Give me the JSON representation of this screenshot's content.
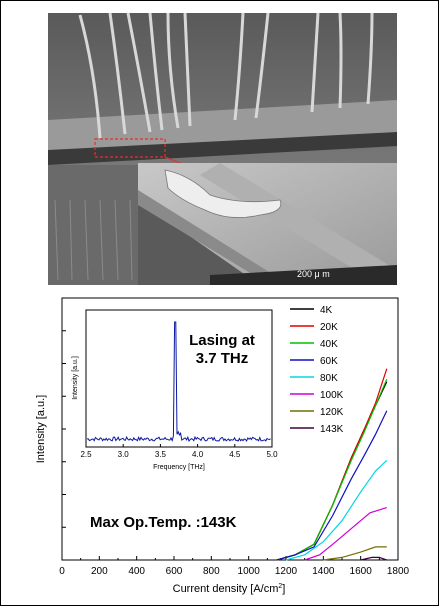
{
  "sem": {
    "scale_label": "200 μ m",
    "colors": {
      "highlight": "#e03030"
    }
  },
  "chart_data": [
    {
      "type": "line",
      "title": "",
      "xlabel": "Current density [A/cm",
      "xlabel_sup": "2",
      "xlabel_end": "]",
      "ylabel": "Intensity [a.u.]",
      "xlim": [
        0,
        1800
      ],
      "x_ticks": [
        "0",
        "200",
        "400",
        "600",
        "800",
        "1000",
        "1200",
        "1400",
        "1600",
        "1800"
      ],
      "legend_position": "top-right",
      "annotation": "Max Op.Temp. :143K",
      "series": [
        {
          "name": "4K",
          "color": "#000000",
          "points": [
            [
              1150,
              0.0
            ],
            [
              1250,
              0.02
            ],
            [
              1350,
              0.06
            ],
            [
              1450,
              0.21
            ],
            [
              1550,
              0.39
            ],
            [
              1620,
              0.5
            ],
            [
              1680,
              0.59
            ],
            [
              1740,
              0.68
            ]
          ]
        },
        {
          "name": "20K",
          "color": "#e00000",
          "points": [
            [
              1150,
              0.0
            ],
            [
              1250,
              0.02
            ],
            [
              1350,
              0.06
            ],
            [
              1450,
              0.21
            ],
            [
              1550,
              0.39
            ],
            [
              1620,
              0.5
            ],
            [
              1680,
              0.6
            ],
            [
              1740,
              0.73
            ]
          ]
        },
        {
          "name": "40K",
          "color": "#00c000",
          "points": [
            [
              1150,
              0.0
            ],
            [
              1250,
              0.02
            ],
            [
              1350,
              0.06
            ],
            [
              1450,
              0.21
            ],
            [
              1550,
              0.38
            ],
            [
              1620,
              0.49
            ],
            [
              1680,
              0.59
            ],
            [
              1740,
              0.69
            ]
          ]
        },
        {
          "name": "60K",
          "color": "#1010c0",
          "points": [
            [
              1150,
              0.0
            ],
            [
              1250,
              0.02
            ],
            [
              1350,
              0.05
            ],
            [
              1450,
              0.17
            ],
            [
              1550,
              0.31
            ],
            [
              1620,
              0.4
            ],
            [
              1680,
              0.48
            ],
            [
              1740,
              0.57
            ]
          ]
        },
        {
          "name": "80K",
          "color": "#00d8e0",
          "points": [
            [
              1200,
              0.0
            ],
            [
              1300,
              0.02
            ],
            [
              1400,
              0.07
            ],
            [
              1500,
              0.15
            ],
            [
              1600,
              0.26
            ],
            [
              1680,
              0.34
            ],
            [
              1740,
              0.38
            ]
          ]
        },
        {
          "name": "100K",
          "color": "#d000d0",
          "points": [
            [
              1300,
              0.0
            ],
            [
              1380,
              0.02
            ],
            [
              1450,
              0.06
            ],
            [
              1550,
              0.12
            ],
            [
              1650,
              0.18
            ],
            [
              1740,
              0.2
            ]
          ]
        },
        {
          "name": "120K",
          "color": "#707000",
          "points": [
            [
              1400,
              0.0
            ],
            [
              1500,
              0.01
            ],
            [
              1600,
              0.03
            ],
            [
              1680,
              0.05
            ],
            [
              1740,
              0.05
            ]
          ]
        },
        {
          "name": "143K",
          "color": "#400040",
          "points": [
            [
              1600,
              0.0
            ],
            [
              1660,
              0.01
            ],
            [
              1700,
              0.01
            ],
            [
              1740,
              0.0
            ]
          ]
        }
      ]
    },
    {
      "type": "line",
      "title": "Lasing at 3.7 THz",
      "title_lines": [
        "Lasing at",
        "3.7 THz"
      ],
      "xlabel": "Frequency [THz]",
      "ylabel": "Intensity [a.u.]",
      "xlim": [
        2.5,
        5.0
      ],
      "x_ticks": [
        "2.5",
        "3.0",
        "3.5",
        "4.0",
        "4.5",
        "5.0"
      ],
      "peak_frequency": 3.7,
      "color": "#0a1aa0"
    }
  ]
}
